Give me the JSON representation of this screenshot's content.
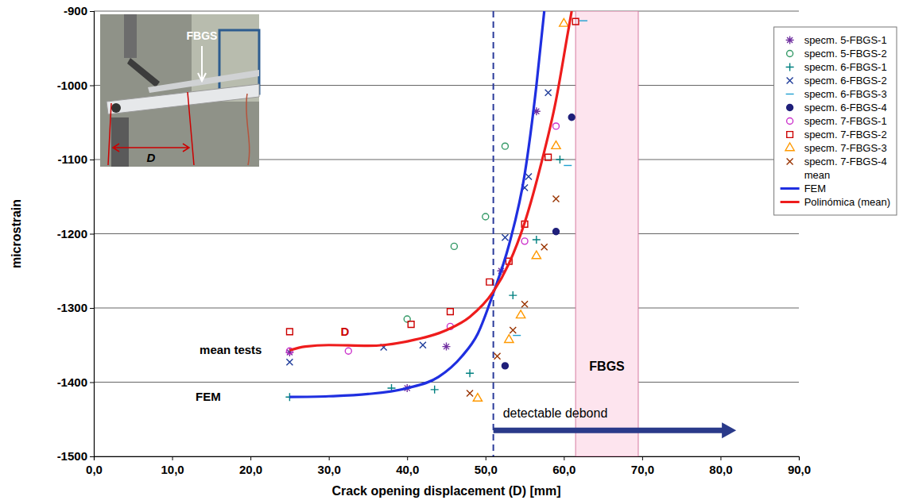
{
  "chart_data": {
    "type": "scatter",
    "x_label": "Crack opening displacement (D)   [mm]",
    "y_label": "microstrain",
    "xlim": [
      0,
      90
    ],
    "xticks": [
      {
        "value": 0,
        "label": "0,0"
      },
      {
        "value": 10,
        "label": "10,0"
      },
      {
        "value": 20,
        "label": "20,0"
      },
      {
        "value": 30,
        "label": "30,0"
      },
      {
        "value": 40,
        "label": "40,0"
      },
      {
        "value": 50,
        "label": "50,0"
      },
      {
        "value": 60,
        "label": "60,0"
      },
      {
        "value": 70,
        "label": "70,0"
      },
      {
        "value": 80,
        "label": "80,0"
      },
      {
        "value": 90,
        "label": "90,0"
      }
    ],
    "ylim": [
      -1500,
      -900
    ],
    "yticks": [
      -1500,
      -1400,
      -1300,
      -1200,
      -1100,
      -1000,
      -900
    ],
    "grid": true,
    "legend": "right",
    "series": [
      {
        "name": "specm. 5-FBGS-1",
        "type": "scatter",
        "marker": "asterisk",
        "color": "#7030a0",
        "x": [
          25,
          40,
          45,
          52,
          56.5
        ],
        "values": [
          -1360,
          -1408,
          -1352,
          -1250,
          -1035
        ]
      },
      {
        "name": "specm. 5-FBGS-2",
        "type": "scatter",
        "marker": "circle",
        "color": "#339966",
        "x": [
          40,
          46,
          50,
          52.5
        ],
        "values": [
          -1315,
          -1217,
          -1177,
          -1082
        ]
      },
      {
        "name": "specm. 6-FBGS-1",
        "type": "scatter",
        "marker": "plus",
        "color": "#008080",
        "x": [
          25,
          38,
          43.5,
          48,
          53.5,
          56.5,
          59.5
        ],
        "values": [
          -1420,
          -1408,
          -1410,
          -1388,
          -1283,
          -1208,
          -1100
        ]
      },
      {
        "name": "specm. 6-FBGS-2",
        "type": "scatter",
        "marker": "x",
        "color": "#1f3c9a",
        "x": [
          25,
          37,
          42,
          52.5,
          55,
          55.5,
          58
        ],
        "values": [
          -1373,
          -1353,
          -1350,
          -1205,
          -1138,
          -1123,
          -1010
        ]
      },
      {
        "name": "specm. 6-FBGS-3",
        "type": "scatter",
        "marker": "dash",
        "color": "#1fa0d0",
        "x": [
          54,
          60.5,
          62.5
        ],
        "values": [
          -1337,
          -1108,
          -913
        ]
      },
      {
        "name": "specm. 6-FBGS-4",
        "type": "scatter",
        "marker": "dot",
        "color": "#1f1f7a",
        "x": [
          52.5,
          59,
          61
        ],
        "values": [
          -1378,
          -1197,
          -1043
        ]
      },
      {
        "name": "specm. 7-FBGS-1",
        "type": "scatter",
        "marker": "circle",
        "color": "#cc33cc",
        "x": [
          25,
          32.5,
          45.5,
          55,
          59
        ],
        "values": [
          -1358,
          -1358,
          -1325,
          -1210,
          -1055
        ]
      },
      {
        "name": "specm. 7-FBGS-2",
        "type": "scatter",
        "marker": "square",
        "color": "#cc0000",
        "x": [
          25,
          40.5,
          45.5,
          50.5,
          53,
          55,
          58,
          61.5
        ],
        "values": [
          -1332,
          -1322,
          -1305,
          -1265,
          -1237,
          -1187,
          -1097,
          -914
        ]
      },
      {
        "name": "specm. 7-FBGS-3",
        "type": "scatter",
        "marker": "triangle",
        "color": "#ff9900",
        "x": [
          49,
          53,
          54.5,
          56.5,
          59,
          60
        ],
        "values": [
          -1422,
          -1343,
          -1310,
          -1230,
          -1082,
          -917
        ]
      },
      {
        "name": "specm. 7-FBGS-4",
        "type": "scatter",
        "marker": "x",
        "color": "#993300",
        "x": [
          48,
          51.5,
          53.5,
          55,
          57.5,
          59
        ],
        "values": [
          -1415,
          -1365,
          -1330,
          -1295,
          -1218,
          -1153
        ]
      },
      {
        "name": "mean",
        "type": "scatter",
        "marker": "none",
        "color": "#cc0000",
        "x": [],
        "values": []
      },
      {
        "name": "FEM",
        "type": "line",
        "marker": "none",
        "color": "#1f2fe0",
        "x": [
          25,
          30,
          35,
          40,
          44,
          47,
          49,
          51,
          53,
          55,
          56.5,
          57.5
        ],
        "values": [
          -1420,
          -1419,
          -1416,
          -1408,
          -1393,
          -1365,
          -1335,
          -1280,
          -1215,
          -1120,
          -1000,
          -900
        ]
      },
      {
        "name": "Polinómica (mean)",
        "type": "line",
        "marker": "none",
        "color": "#ee1c1c",
        "x": [
          25,
          27,
          30,
          35,
          40,
          45,
          48,
          51,
          53,
          55,
          57,
          59,
          60.5,
          61
        ],
        "values": [
          -1357,
          -1352,
          -1350,
          -1351,
          -1345,
          -1330,
          -1312,
          -1278,
          -1240,
          -1185,
          -1110,
          -1020,
          -930,
          -900
        ]
      }
    ],
    "shaded_region": {
      "x": [
        61.5,
        69.5
      ],
      "label": "FBGS",
      "color": "#fde4ee"
    },
    "vline": {
      "x": 51,
      "line_style": "dashed",
      "color": "#2a3a9a"
    },
    "arrow": {
      "x": [
        51,
        82
      ],
      "y": -1465,
      "label": "detectable debond",
      "color": "#2a3a8a"
    },
    "annotations": [
      {
        "text": "mean tests",
        "x": 13.5,
        "y": -1362,
        "color": "#000000"
      },
      {
        "text": "FEM",
        "x": 13,
        "y": -1425,
        "color": "#000000"
      },
      {
        "text": "D",
        "x": 31.5,
        "y": -1337,
        "color": "#cc0000"
      }
    ],
    "inset": {
      "labels": [
        "FBGS",
        "D"
      ]
    }
  }
}
